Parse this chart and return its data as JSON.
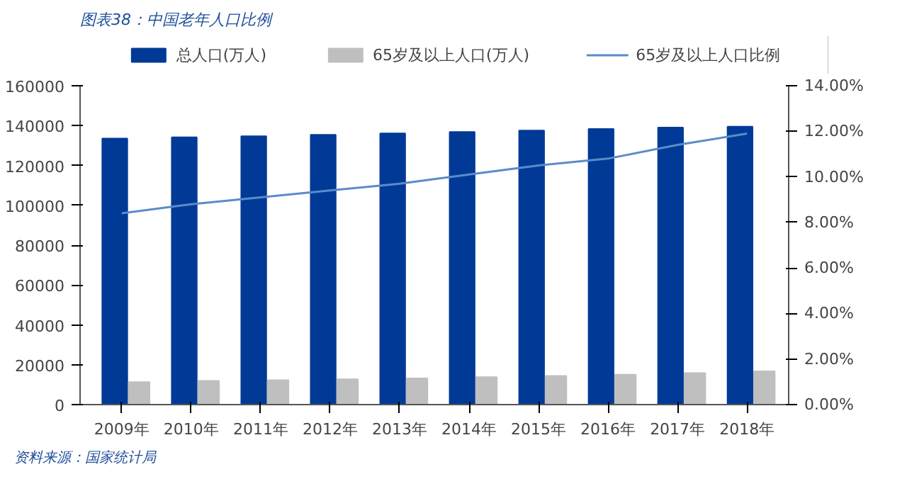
{
  "chart_data": {
    "type": "bar",
    "title": "图表38：中国老年人口比例",
    "categories": [
      "2009年",
      "2010年",
      "2011年",
      "2012年",
      "2013年",
      "2014年",
      "2015年",
      "2016年",
      "2017年",
      "2018年"
    ],
    "series": [
      {
        "name": "总人口(万人)",
        "color": "#003a96",
        "values": [
          133500,
          134100,
          134700,
          135400,
          136100,
          136800,
          137500,
          138300,
          139000,
          139500
        ]
      },
      {
        "name": "65岁及以上人口(万人)",
        "color": "#bfbfbf",
        "values": [
          11300,
          11900,
          12300,
          12700,
          13200,
          13800,
          14400,
          15000,
          15800,
          16700
        ]
      },
      {
        "name": "65岁及以上人口比例",
        "type": "line",
        "axis": "y2",
        "color": "#5b8bc9",
        "values": [
          8.4,
          8.8,
          9.1,
          9.4,
          9.7,
          10.1,
          10.5,
          10.8,
          11.4,
          11.9
        ]
      }
    ],
    "ylim": [
      0,
      160000
    ],
    "yticks": [
      0,
      20000,
      40000,
      60000,
      80000,
      100000,
      120000,
      140000,
      160000
    ],
    "y2lim": [
      0,
      14
    ],
    "y2ticks": [
      {
        "value": 0,
        "label": "0.00%"
      },
      {
        "value": 2,
        "label": "2.00%"
      },
      {
        "value": 4,
        "label": "4.00%"
      },
      {
        "value": 6,
        "label": "6.00%"
      },
      {
        "value": 8,
        "label": "8.00%"
      },
      {
        "value": 10,
        "label": "10.00%"
      },
      {
        "value": 12,
        "label": "12.00%"
      },
      {
        "value": 14,
        "label": "14.00%"
      }
    ],
    "grid": false,
    "legend": "top",
    "annotations": [
      "资料来源：国家统计局"
    ]
  }
}
